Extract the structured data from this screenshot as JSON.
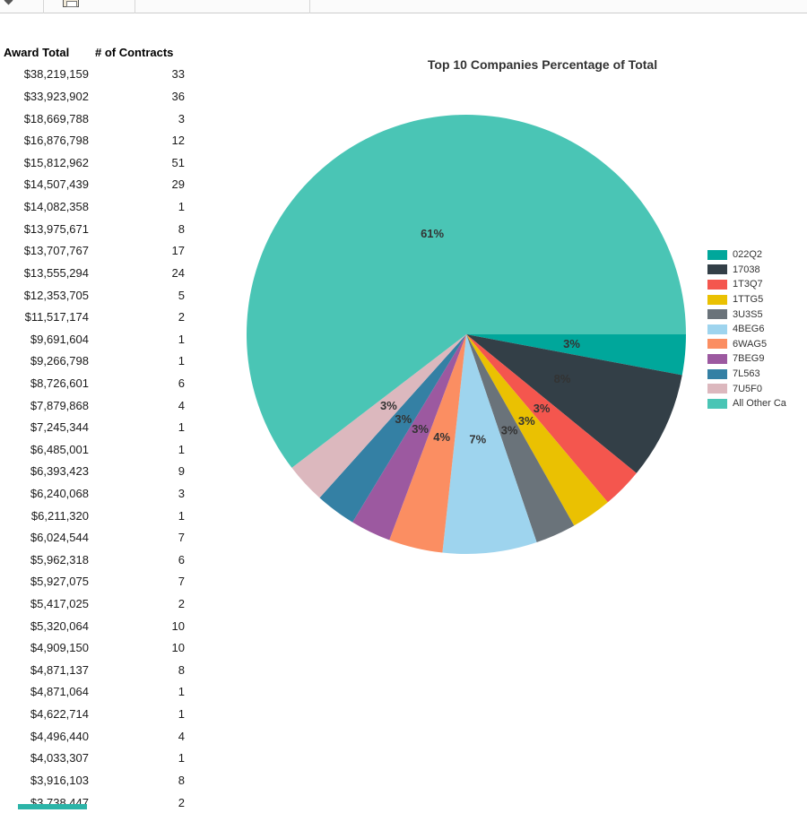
{
  "toolbar": {
    "icons": [
      "pointer-icon",
      "print-icon"
    ]
  },
  "table": {
    "columns": [
      "Award Total",
      "# of Contracts"
    ],
    "rows": [
      [
        "$38,219,159",
        "33"
      ],
      [
        "$33,923,902",
        "36"
      ],
      [
        "$18,669,788",
        "3"
      ],
      [
        "$16,876,798",
        "12"
      ],
      [
        "$15,812,962",
        "51"
      ],
      [
        "$14,507,439",
        "29"
      ],
      [
        "$14,082,358",
        "1"
      ],
      [
        "$13,975,671",
        "8"
      ],
      [
        "$13,707,767",
        "17"
      ],
      [
        "$13,555,294",
        "24"
      ],
      [
        "$12,353,705",
        "5"
      ],
      [
        "$11,517,174",
        "2"
      ],
      [
        "$9,691,604",
        "1"
      ],
      [
        "$9,266,798",
        "1"
      ],
      [
        "$8,726,601",
        "6"
      ],
      [
        "$7,879,868",
        "4"
      ],
      [
        "$7,245,344",
        "1"
      ],
      [
        "$6,485,001",
        "1"
      ],
      [
        "$6,393,423",
        "9"
      ],
      [
        "$6,240,068",
        "3"
      ],
      [
        "$6,211,320",
        "1"
      ],
      [
        "$6,024,544",
        "7"
      ],
      [
        "$5,962,318",
        "6"
      ],
      [
        "$5,927,075",
        "7"
      ],
      [
        "$5,417,025",
        "2"
      ],
      [
        "$5,320,064",
        "10"
      ],
      [
        "$4,909,150",
        "10"
      ],
      [
        "$4,871,137",
        "8"
      ],
      [
        "$4,871,064",
        "1"
      ],
      [
        "$4,622,714",
        "1"
      ],
      [
        "$4,496,440",
        "4"
      ],
      [
        "$4,033,307",
        "1"
      ],
      [
        "$3,916,103",
        "8"
      ],
      [
        "$3,738,447",
        "2"
      ]
    ]
  },
  "chart": {
    "title": "Top 10 Companies Percentage of Total"
  },
  "chart_data": [
    {
      "type": "pie",
      "title": "Top 10 Companies Percentage of Total",
      "labels": [
        "022Q2",
        "17038",
        "1T3Q7",
        "1TTG5",
        "3U3S5",
        "4BEG6",
        "6WAG5",
        "7BEG9",
        "7L563",
        "7U5F0",
        "All Other Ca"
      ],
      "values": [
        3,
        8,
        3,
        3,
        3,
        7,
        4,
        3,
        3,
        3,
        61
      ],
      "percent_labels": [
        "3%",
        "8%",
        "3%",
        "3%",
        "3%",
        "7%",
        "4%",
        "3%",
        "3%",
        "3%",
        "61%"
      ],
      "colors": [
        "#00A79B",
        "#333F47",
        "#F4564E",
        "#EAC102",
        "#6A737A",
        "#9ED4EE",
        "#FB8E62",
        "#9C59A0",
        "#3480A4",
        "#DCB8BE",
        "#4AC5B5"
      ],
      "legend_position": "right",
      "start_angle_deg": 0,
      "direction": "clockwise"
    },
    {
      "type": "table",
      "columns": [
        "Award Total",
        "# of Contracts"
      ],
      "rows_ref": "see table.rows"
    }
  ]
}
